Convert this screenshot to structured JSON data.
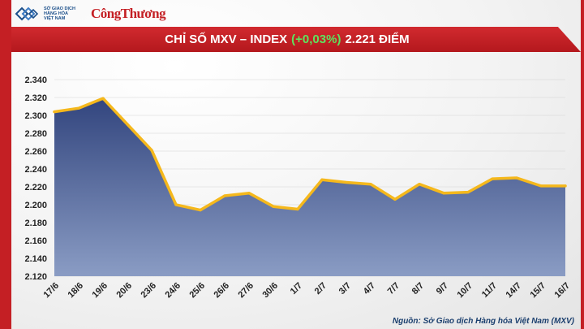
{
  "header": {
    "mxv_lines": [
      "SỞ GIAO DỊCH",
      "HÀNG HÓA",
      "VIỆT NAM"
    ],
    "brand": "CôngThương"
  },
  "title": {
    "main": "CHỈ SỐ MXV – INDEX",
    "change": "(+0,03%)",
    "value": "2.221 ĐIỂM"
  },
  "source": "Nguồn: Sở Giao dịch Hàng hóa Việt Nam (MXV)",
  "colors": {
    "accent": "#c41f24",
    "line": "#f5b81c",
    "fill_top": "#32457e",
    "fill_bottom": "#8a9cc4",
    "change_green": "#5ee35e"
  },
  "chart_data": {
    "type": "area",
    "categories": [
      "17/6",
      "18/6",
      "19/6",
      "20/6",
      "23/6",
      "24/6",
      "25/6",
      "26/6",
      "27/6",
      "30/6",
      "1/7",
      "2/7",
      "3/7",
      "4/7",
      "7/7",
      "8/7",
      "9/7",
      "10/7",
      "11/7",
      "14/7",
      "15/7",
      "16/7"
    ],
    "values": [
      2304,
      2308,
      2319,
      2290,
      2261,
      2200,
      2194,
      2210,
      2213,
      2198,
      2195,
      2228,
      2225,
      2223,
      2206,
      2223,
      2213,
      2214,
      2229,
      2230,
      2221,
      2221
    ],
    "yticks": [
      "2.120",
      "2.140",
      "2.160",
      "2.180",
      "2.200",
      "2.220",
      "2.240",
      "2.260",
      "2.280",
      "2.300",
      "2.320",
      "2.340"
    ],
    "ylim": [
      2120,
      2340
    ],
    "xlabel": "",
    "ylabel": ""
  }
}
